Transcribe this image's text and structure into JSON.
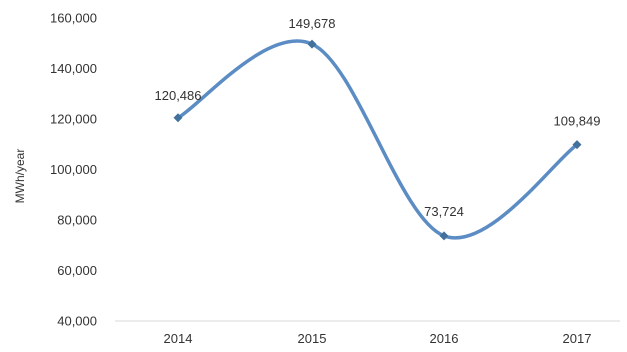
{
  "chart_data": {
    "type": "line",
    "title": "",
    "xlabel": "",
    "ylabel": "MWh/year",
    "categories": [
      "2014",
      "2015",
      "2016",
      "2017"
    ],
    "series": [
      {
        "values": [
          120486,
          149678,
          73724,
          109849
        ]
      }
    ],
    "data_labels": [
      "120,486",
      "149,678",
      "73,724",
      "109,849"
    ],
    "ylim": [
      40000,
      160000
    ],
    "yticks": [
      40000,
      60000,
      80000,
      100000,
      120000,
      140000,
      160000
    ],
    "ytick_labels": [
      "40,000",
      "60,000",
      "80,000",
      "100,000",
      "120,000",
      "140,000",
      "160,000"
    ],
    "grid": false,
    "legend": "none",
    "smooth": true,
    "line_color": "#5b8cc4",
    "marker_color": "#41719c",
    "axis_color": "#d9d9d9"
  }
}
